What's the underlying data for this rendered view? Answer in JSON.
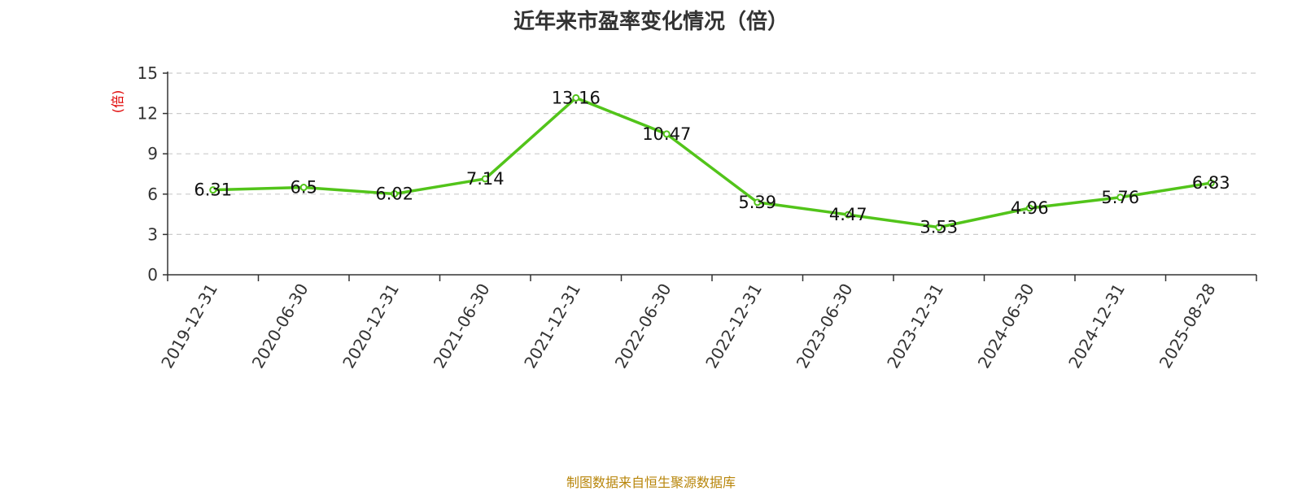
{
  "chart_data": {
    "type": "line",
    "title": "近年来市盈率变化情况（倍）",
    "ylabel": "(倍)",
    "xlabel": "",
    "categories": [
      "2019-12-31",
      "2020-06-30",
      "2020-12-31",
      "2021-06-30",
      "2021-12-31",
      "2022-06-30",
      "2022-12-31",
      "2023-06-30",
      "2023-12-31",
      "2024-06-30",
      "2024-12-31",
      "2025-08-28"
    ],
    "series": [
      {
        "values": [
          6.31,
          6.5,
          6.02,
          7.14,
          13.16,
          10.47,
          5.39,
          4.47,
          3.53,
          4.96,
          5.76,
          6.83
        ]
      }
    ],
    "data_labels": [
      "6.31",
      "6.5",
      "6.02",
      "7.14",
      "13.16",
      "10.47",
      "5.39",
      "4.47",
      "3.53",
      "4.96",
      "5.76",
      "6.83"
    ],
    "ylim": [
      0,
      15
    ],
    "yticks": [
      0,
      3,
      6,
      9,
      12,
      15
    ],
    "grid": true,
    "grid_style": "dashed horizontal",
    "legend": "none",
    "line_color": "#52c41a"
  },
  "footer": {
    "source": "制图数据来自恒生聚源数据库"
  }
}
